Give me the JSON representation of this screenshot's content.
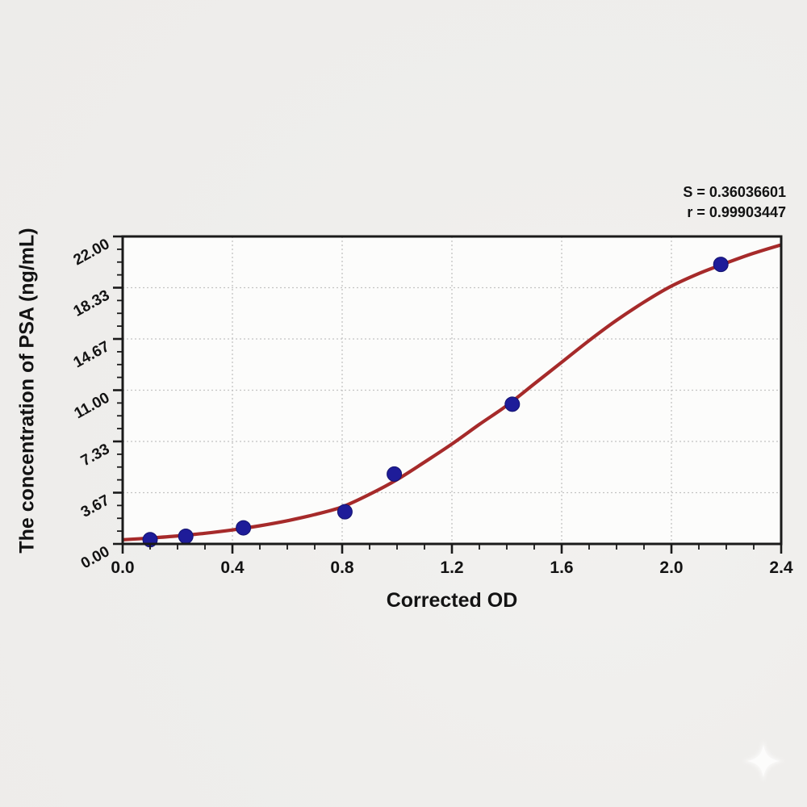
{
  "chart_data": {
    "type": "scatter",
    "title": "",
    "xlabel": "Corrected OD",
    "ylabel": "The concentration of PSA (ng/mL)",
    "xlim": [
      0,
      2.4
    ],
    "ylim": [
      0,
      22
    ],
    "x_tick_values": [
      0,
      0.4,
      0.8,
      1.2,
      1.6,
      2.0,
      2.4
    ],
    "x_tick_labels": [
      "0.0",
      "0.4",
      "0.8",
      "1.2",
      "1.6",
      "2.0",
      "2.4"
    ],
    "x_minor_step": 0.1,
    "y_tick_values": [
      0,
      3.6667,
      7.3333,
      11,
      14.6667,
      18.3333,
      22
    ],
    "y_tick_labels": [
      "0.00",
      "3.67",
      "7.33",
      "11.00",
      "14.67",
      "18.33",
      "22.00"
    ],
    "y_minor_step": 0.9166667,
    "grid": "dotted lines at major ticks",
    "legend": "none",
    "series": [
      {
        "name": "standard points",
        "type": "scatter",
        "color": "#1e1c99",
        "points": [
          [
            0.1,
            0.3
          ],
          [
            0.23,
            0.55
          ],
          [
            0.44,
            1.15
          ],
          [
            0.81,
            2.3
          ],
          [
            0.99,
            5.0
          ],
          [
            1.42,
            10.0
          ],
          [
            2.18,
            20.0
          ]
        ]
      },
      {
        "name": "4PL fit curve",
        "type": "line",
        "color": "#a62a2a",
        "points": [
          [
            0.0,
            0.3
          ],
          [
            0.1,
            0.42
          ],
          [
            0.2,
            0.57
          ],
          [
            0.3,
            0.76
          ],
          [
            0.4,
            1.0
          ],
          [
            0.5,
            1.3
          ],
          [
            0.6,
            1.66
          ],
          [
            0.7,
            2.1
          ],
          [
            0.8,
            2.65
          ],
          [
            0.9,
            3.55
          ],
          [
            1.0,
            4.6
          ],
          [
            1.1,
            5.85
          ],
          [
            1.2,
            7.15
          ],
          [
            1.3,
            8.55
          ],
          [
            1.4,
            9.9
          ],
          [
            1.5,
            11.45
          ],
          [
            1.6,
            13.0
          ],
          [
            1.7,
            14.55
          ],
          [
            1.8,
            16.0
          ],
          [
            1.9,
            17.3
          ],
          [
            2.0,
            18.45
          ],
          [
            2.1,
            19.35
          ],
          [
            2.2,
            20.1
          ],
          [
            2.3,
            20.8
          ],
          [
            2.4,
            21.4
          ]
        ]
      }
    ],
    "annotations": [
      {
        "text": "S = 0.36036601"
      },
      {
        "text": "r = 0.99903447"
      }
    ]
  },
  "colors": {
    "curve": "#a62a2a",
    "points": "#1e1c99",
    "axis": "#1a1a1a",
    "grid": "#c3c3c3",
    "text": "#131313",
    "page_background": "#efeeec",
    "plot_background": "#fcfcfb",
    "watermark": "#ffffff"
  },
  "watermark": {
    "icon": "sparkle"
  }
}
